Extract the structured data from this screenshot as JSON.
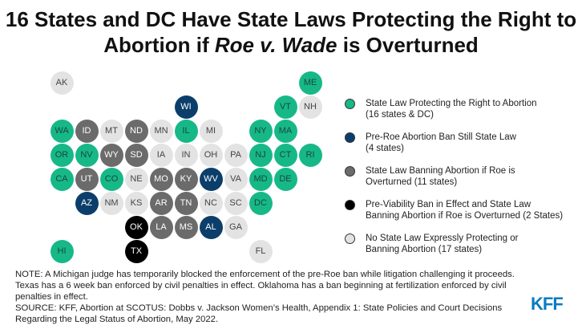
{
  "title_parts": [
    "16 States and DC Have State Laws Protecting the Right to Abortion if ",
    "Roe v. Wade",
    " is Overturned"
  ],
  "colors": {
    "protect": "#17b888",
    "preroe": "#0b3e6b",
    "ban": "#6b6b6b",
    "previability": "#000000",
    "none": "#e3e3e3"
  },
  "text_colors": {
    "protect": "#164a3b",
    "preroe": "#ffffff",
    "ban": "#ffffff",
    "previability": "#ffffff",
    "none": "#444444"
  },
  "states": [
    {
      "abbr": "AK",
      "cat": "none",
      "row": 0,
      "col": 0
    },
    {
      "abbr": "ME",
      "cat": "protect",
      "row": 0,
      "col": 10
    },
    {
      "abbr": "WI",
      "cat": "preroe",
      "row": 1,
      "col": 5
    },
    {
      "abbr": "VT",
      "cat": "protect",
      "row": 1,
      "col": 9
    },
    {
      "abbr": "NH",
      "cat": "none",
      "row": 1,
      "col": 10
    },
    {
      "abbr": "WA",
      "cat": "protect",
      "row": 2,
      "col": 0
    },
    {
      "abbr": "ID",
      "cat": "ban",
      "row": 2,
      "col": 1
    },
    {
      "abbr": "MT",
      "cat": "none",
      "row": 2,
      "col": 2
    },
    {
      "abbr": "ND",
      "cat": "ban",
      "row": 2,
      "col": 3
    },
    {
      "abbr": "MN",
      "cat": "none",
      "row": 2,
      "col": 4
    },
    {
      "abbr": "IL",
      "cat": "protect",
      "row": 2,
      "col": 5
    },
    {
      "abbr": "MI",
      "cat": "none",
      "row": 2,
      "col": 6
    },
    {
      "abbr": "NY",
      "cat": "protect",
      "row": 2,
      "col": 8
    },
    {
      "abbr": "MA",
      "cat": "protect",
      "row": 2,
      "col": 9
    },
    {
      "abbr": "OR",
      "cat": "protect",
      "row": 3,
      "col": 0
    },
    {
      "abbr": "NV",
      "cat": "protect",
      "row": 3,
      "col": 1
    },
    {
      "abbr": "WY",
      "cat": "ban",
      "row": 3,
      "col": 2
    },
    {
      "abbr": "SD",
      "cat": "ban",
      "row": 3,
      "col": 3
    },
    {
      "abbr": "IA",
      "cat": "none",
      "row": 3,
      "col": 4
    },
    {
      "abbr": "IN",
      "cat": "none",
      "row": 3,
      "col": 5
    },
    {
      "abbr": "OH",
      "cat": "none",
      "row": 3,
      "col": 6
    },
    {
      "abbr": "PA",
      "cat": "none",
      "row": 3,
      "col": 7
    },
    {
      "abbr": "NJ",
      "cat": "protect",
      "row": 3,
      "col": 8
    },
    {
      "abbr": "CT",
      "cat": "protect",
      "row": 3,
      "col": 9
    },
    {
      "abbr": "RI",
      "cat": "protect",
      "row": 3,
      "col": 10
    },
    {
      "abbr": "CA",
      "cat": "protect",
      "row": 4,
      "col": 0
    },
    {
      "abbr": "UT",
      "cat": "ban",
      "row": 4,
      "col": 1
    },
    {
      "abbr": "CO",
      "cat": "protect",
      "row": 4,
      "col": 2
    },
    {
      "abbr": "NE",
      "cat": "none",
      "row": 4,
      "col": 3
    },
    {
      "abbr": "MO",
      "cat": "ban",
      "row": 4,
      "col": 4
    },
    {
      "abbr": "KY",
      "cat": "ban",
      "row": 4,
      "col": 5
    },
    {
      "abbr": "WV",
      "cat": "preroe",
      "row": 4,
      "col": 6
    },
    {
      "abbr": "VA",
      "cat": "none",
      "row": 4,
      "col": 7
    },
    {
      "abbr": "MD",
      "cat": "protect",
      "row": 4,
      "col": 8
    },
    {
      "abbr": "DE",
      "cat": "protect",
      "row": 4,
      "col": 9
    },
    {
      "abbr": "AZ",
      "cat": "preroe",
      "row": 5,
      "col": 1
    },
    {
      "abbr": "NM",
      "cat": "none",
      "row": 5,
      "col": 2
    },
    {
      "abbr": "KS",
      "cat": "none",
      "row": 5,
      "col": 3
    },
    {
      "abbr": "AR",
      "cat": "ban",
      "row": 5,
      "col": 4
    },
    {
      "abbr": "TN",
      "cat": "ban",
      "row": 5,
      "col": 5
    },
    {
      "abbr": "NC",
      "cat": "none",
      "row": 5,
      "col": 6
    },
    {
      "abbr": "SC",
      "cat": "none",
      "row": 5,
      "col": 7
    },
    {
      "abbr": "DC",
      "cat": "protect",
      "row": 5,
      "col": 8
    },
    {
      "abbr": "OK",
      "cat": "previability",
      "row": 6,
      "col": 3
    },
    {
      "abbr": "LA",
      "cat": "ban",
      "row": 6,
      "col": 4
    },
    {
      "abbr": "MS",
      "cat": "ban",
      "row": 6,
      "col": 5
    },
    {
      "abbr": "AL",
      "cat": "preroe",
      "row": 6,
      "col": 6
    },
    {
      "abbr": "GA",
      "cat": "none",
      "row": 6,
      "col": 7
    },
    {
      "abbr": "HI",
      "cat": "protect",
      "row": 7,
      "col": 0
    },
    {
      "abbr": "TX",
      "cat": "previability",
      "row": 7,
      "col": 3
    },
    {
      "abbr": "FL",
      "cat": "none",
      "row": 7,
      "col": 8
    }
  ],
  "legend": [
    {
      "cat": "protect",
      "label": "State Law Protecting the Right to Abortion",
      "sub": "(16 states & DC)"
    },
    {
      "cat": "preroe",
      "label": "Pre-Roe Abortion Ban Still State Law",
      "sub": "(4 states)"
    },
    {
      "cat": "ban",
      "label": "State Law Banning Abortion if Roe is",
      "sub": "Overturned (11 states)"
    },
    {
      "cat": "previability",
      "label": "Pre-Viability Ban in Effect and State Law",
      "sub": "Banning Abortion if Roe is Overturned (2 States)"
    },
    {
      "cat": "none",
      "label": "No State Law Expressly Protecting or",
      "sub": "Banning Abortion (17 states)"
    }
  ],
  "note": "NOTE: A Michigan judge has temporarily blocked the enforcement of the pre-Roe ban while litigation challenging it proceeds. Texas has a 6 week ban enforced by civil penalties in effect. Oklahoma has a ban beginning at fertilization enforced by civil penalties in effect.",
  "source": "SOURCE: KFF, Abortion at SCOTUS: Dobbs v. Jackson Women’s Health, Appendix 1: State Policies and Court Decisions Regarding the Legal Status of Abortion, May 2022.",
  "logo": "KFF"
}
